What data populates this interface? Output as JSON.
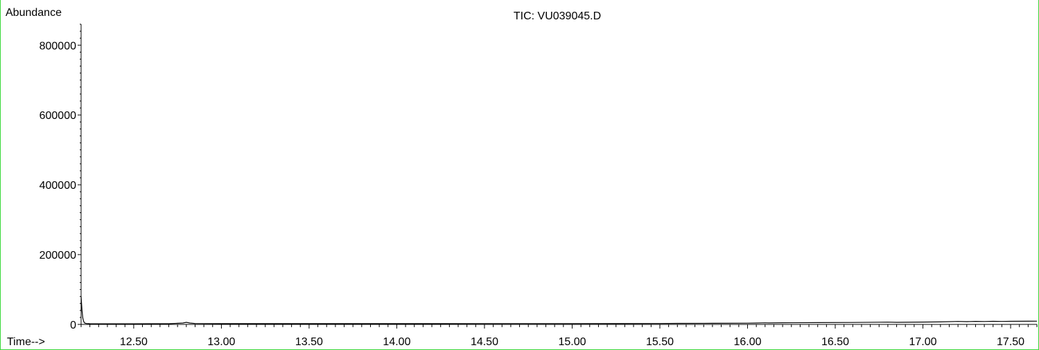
{
  "chart_data": {
    "type": "line",
    "title": "TIC: VU039045.D",
    "ylabel": "Abundance",
    "xlabel": "Time-->",
    "xlim": [
      12.2,
      17.65
    ],
    "ylim": [
      0,
      860000
    ],
    "x_ticks": [
      12.5,
      13.0,
      13.5,
      14.0,
      14.5,
      15.0,
      15.5,
      16.0,
      16.5,
      17.0,
      17.5
    ],
    "x_tick_labels": [
      "12.50",
      "13.00",
      "13.50",
      "14.00",
      "14.50",
      "15.00",
      "15.50",
      "16.00",
      "16.50",
      "17.00",
      "17.50"
    ],
    "y_ticks": [
      0,
      200000,
      400000,
      600000,
      800000
    ],
    "y_tick_labels": [
      "0",
      "200000",
      "400000",
      "600000",
      "800000"
    ],
    "grid": false,
    "series": [
      {
        "color": "#000000",
        "x": [
          12.2,
          12.205,
          12.21,
          12.215,
          12.22,
          12.23,
          12.25,
          12.3,
          12.4,
          12.5,
          12.6,
          12.7,
          12.78,
          12.8,
          12.82,
          12.85,
          13.0,
          13.5,
          14.0,
          14.5,
          15.0,
          15.5,
          15.6,
          15.8,
          16.0,
          16.05,
          16.1,
          16.12,
          16.2,
          16.4,
          16.6,
          16.8,
          16.85,
          17.0,
          17.1,
          17.2,
          17.25,
          17.3,
          17.35,
          17.4,
          17.45,
          17.5,
          17.6,
          17.65
        ],
        "y": [
          80000,
          40000,
          18000,
          8000,
          4000,
          2500,
          2000,
          1800,
          1800,
          1800,
          1900,
          2000,
          4000,
          6000,
          4000,
          2500,
          2200,
          2200,
          2200,
          2300,
          2400,
          2600,
          3000,
          3200,
          3500,
          4000,
          4600,
          4200,
          4800,
          5200,
          5600,
          6500,
          6000,
          6800,
          7200,
          8500,
          8000,
          8800,
          8300,
          9000,
          8600,
          9000,
          9200,
          9300
        ]
      }
    ]
  }
}
